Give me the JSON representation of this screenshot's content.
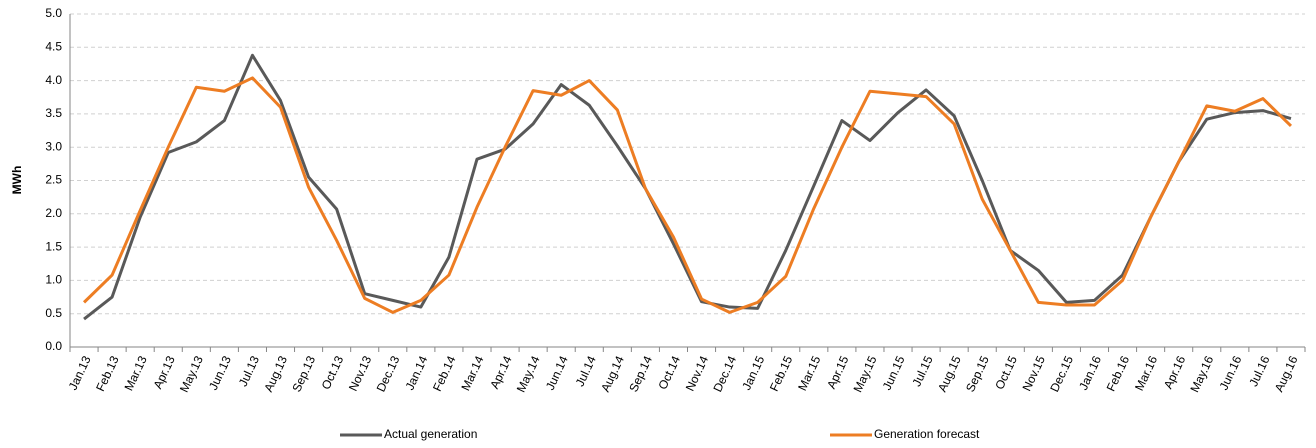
{
  "chart_data": {
    "type": "line",
    "y_label": "MWh",
    "categories": [
      "Jan.13",
      "Feb.13",
      "Mar.13",
      "Apr.13",
      "May.13",
      "Jun.13",
      "Jul.13",
      "Aug.13",
      "Sep.13",
      "Oct.13",
      "Nov.13",
      "Dec.13",
      "Jan.14",
      "Feb.14",
      "Mar.14",
      "Apr.14",
      "May.14",
      "Jun.14",
      "Jul.14",
      "Aug.14",
      "Sep.14",
      "Oct.14",
      "Nov.14",
      "Dec.14",
      "Jan.15",
      "Feb.15",
      "Mar.15",
      "Apr.15",
      "May.15",
      "Jun.15",
      "Jul.15",
      "Aug.15",
      "Sep.15",
      "Oct.15",
      "Nov.15",
      "Dec.15",
      "Jan.16",
      "Feb.16",
      "Mar.16",
      "Apr.16",
      "May.16",
      "Jun.16",
      "Jul.16",
      "Aug.16"
    ],
    "series": [
      {
        "name": "Actual generation",
        "color": "#595959",
        "values": [
          0.42,
          0.75,
          1.95,
          2.92,
          3.08,
          3.4,
          4.38,
          3.7,
          2.55,
          2.07,
          0.8,
          0.7,
          0.6,
          1.35,
          2.82,
          2.97,
          3.35,
          3.94,
          3.63,
          3.02,
          2.38,
          1.55,
          0.68,
          0.6,
          0.58,
          1.45,
          2.42,
          3.4,
          3.1,
          3.52,
          3.86,
          3.47,
          2.5,
          1.45,
          1.15,
          0.67,
          0.7,
          1.08,
          1.95,
          2.78,
          3.42,
          3.52,
          3.55,
          3.43
        ]
      },
      {
        "name": "Generation forecast",
        "color": "#ed7d23",
        "values": [
          0.67,
          1.08,
          2.05,
          3.0,
          3.9,
          3.84,
          4.04,
          3.6,
          2.4,
          1.6,
          0.73,
          0.52,
          0.7,
          1.08,
          2.1,
          3.0,
          3.85,
          3.78,
          4.0,
          3.56,
          2.38,
          1.65,
          0.72,
          0.52,
          0.67,
          1.06,
          2.08,
          3.0,
          3.84,
          3.8,
          3.76,
          3.35,
          2.22,
          1.45,
          0.67,
          0.63,
          0.63,
          1.0,
          1.95,
          2.78,
          3.62,
          3.54,
          3.73,
          3.32
        ]
      }
    ],
    "ylim": [
      0,
      5
    ],
    "yticks": [
      {
        "value": 0,
        "label": "0.0"
      },
      0.5,
      {
        "value": 1,
        "label": "1.0"
      },
      1.5,
      {
        "value": 2,
        "label": "2.0"
      },
      2.5,
      {
        "value": 3,
        "label": "3.0"
      },
      3.5,
      {
        "value": 4,
        "label": "4.0"
      },
      4.5,
      {
        "value": 5,
        "label": "5.0"
      }
    ],
    "grid": true,
    "legend": "bottom"
  }
}
